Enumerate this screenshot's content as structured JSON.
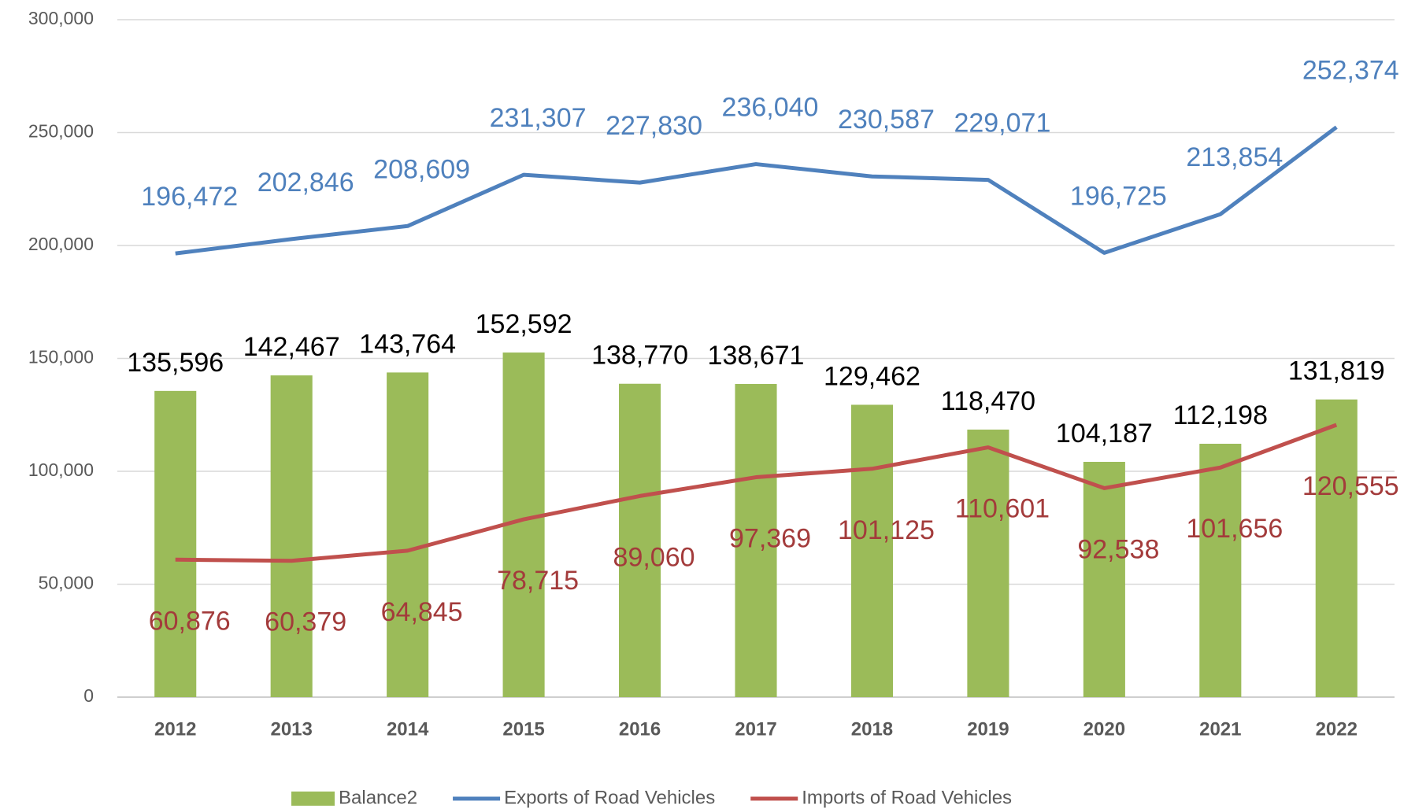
{
  "chart_data": {
    "type": "bar-line",
    "categories": [
      "2012",
      "2013",
      "2014",
      "2015",
      "2016",
      "2017",
      "2018",
      "2019",
      "2020",
      "2021",
      "2022"
    ],
    "series": [
      {
        "name": "Balance2",
        "type": "bar",
        "color": "#9bbb59",
        "values": [
          135596,
          142467,
          143764,
          152592,
          138770,
          138671,
          129462,
          118470,
          104187,
          112198,
          131819
        ],
        "value_labels": [
          "135,596",
          "142,467",
          "143,764",
          "152,592",
          "138,770",
          "138,671",
          "129,462",
          "118,470",
          "104,187",
          "112,198",
          "131,819"
        ],
        "label_color": "#000000"
      },
      {
        "name": "Exports of Road Vehicles",
        "type": "line",
        "color": "#4f81bd",
        "values": [
          196472,
          202846,
          208609,
          231307,
          227830,
          236040,
          230587,
          229071,
          196725,
          213854,
          252374
        ],
        "value_labels": [
          "196,472",
          "202,846",
          "208,609",
          "231,307",
          "227,830",
          "236,040",
          "230,587",
          "229,071",
          "196,725",
          "213,854",
          "252,374"
        ],
        "label_color": "#4f81bd"
      },
      {
        "name": "Imports of Road Vehicles",
        "type": "line",
        "color": "#c0504d",
        "values": [
          60876,
          60379,
          64845,
          78715,
          89060,
          97369,
          101125,
          110601,
          92538,
          101656,
          120555
        ],
        "value_labels": [
          "60,876",
          "60,379",
          "64,845",
          "78,715",
          "89,060",
          "97,369",
          "101,125",
          "110,601",
          "92,538",
          "101,656",
          "120,555"
        ],
        "label_color": "#a33b3b"
      }
    ],
    "ylim": [
      0,
      300000
    ],
    "yticks": [
      0,
      {
        "value": 50000,
        "label": "50,000"
      },
      {
        "value": 100000,
        "label": "100,000"
      },
      {
        "value": 150000,
        "label": "150,000"
      },
      {
        "value": 200000,
        "label": "200,000"
      },
      {
        "value": 250000,
        "label": "250,000"
      },
      {
        "value": 300000,
        "label": "300,000"
      }
    ],
    "grid": true,
    "legend": "bottom"
  }
}
